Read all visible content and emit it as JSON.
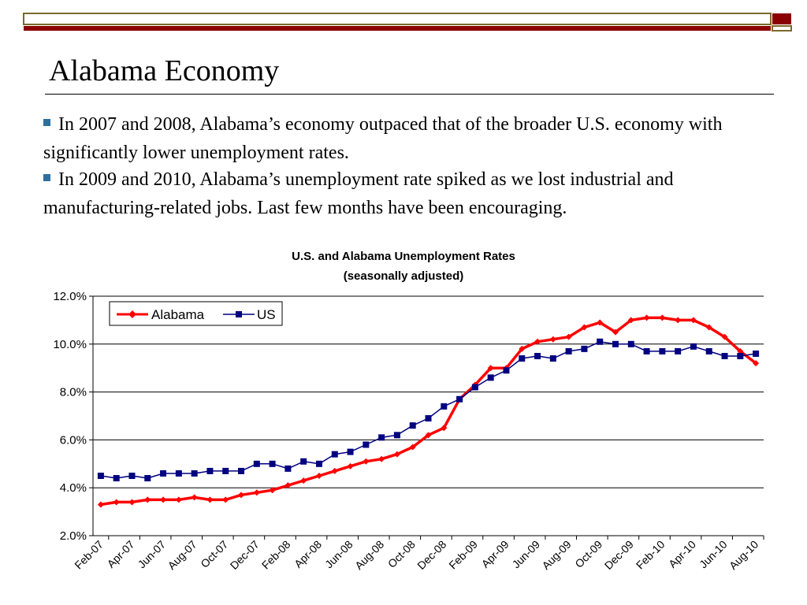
{
  "slide": {
    "title": "Alabama Economy",
    "bullets": [
      "In 2007 and 2008, Alabama’s economy outpaced that of the broader U.S. economy with significantly lower unemployment rates.",
      "In 2009 and 2010, Alabama’s unemployment rate spiked as we lost industrial and manufacturing-related jobs. Last few months have been encouraging."
    ]
  },
  "colors": {
    "header_bar": "#7a6a2a",
    "header_accent": "#8b0000",
    "bullet_mark": "#2e6f9e",
    "alabama": "#ff0000",
    "us": "#000080"
  },
  "chart_data": {
    "type": "line",
    "title": "U.S. and Alabama Unemployment Rates",
    "subtitle": "(seasonally adjusted)",
    "ylim": [
      0.02,
      0.12
    ],
    "yticks": [
      "2.0%",
      "4.0%",
      "6.0%",
      "8.0%",
      "10.0%",
      "12.0%"
    ],
    "grid": true,
    "legend_position": "top-left",
    "x": [
      "Feb-07",
      "Mar-07",
      "Apr-07",
      "May-07",
      "Jun-07",
      "Jul-07",
      "Aug-07",
      "Sep-07",
      "Oct-07",
      "Nov-07",
      "Dec-07",
      "Jan-08",
      "Feb-08",
      "Mar-08",
      "Apr-08",
      "May-08",
      "Jun-08",
      "Jul-08",
      "Aug-08",
      "Sep-08",
      "Oct-08",
      "Nov-08",
      "Dec-08",
      "Jan-09",
      "Feb-09",
      "Mar-09",
      "Apr-09",
      "May-09",
      "Jun-09",
      "Jul-09",
      "Aug-09",
      "Sep-09",
      "Oct-09",
      "Nov-09",
      "Dec-09",
      "Jan-10",
      "Feb-10",
      "Mar-10",
      "Apr-10",
      "May-10",
      "Jun-10",
      "Jul-10",
      "Aug-10"
    ],
    "xtick_labels": [
      "Feb-07",
      "Apr-07",
      "Jun-07",
      "Aug-07",
      "Oct-07",
      "Dec-07",
      "Feb-08",
      "Apr-08",
      "Jun-08",
      "Aug-08",
      "Oct-08",
      "Dec-08",
      "Feb-09",
      "Apr-09",
      "Jun-09",
      "Aug-09",
      "Oct-09",
      "Dec-09",
      "Feb-10",
      "Apr-10",
      "Jun-10",
      "Aug-10"
    ],
    "series": [
      {
        "name": "Alabama",
        "color": "#ff0000",
        "values": [
          3.3,
          3.4,
          3.4,
          3.5,
          3.5,
          3.5,
          3.6,
          3.5,
          3.5,
          3.7,
          3.8,
          3.9,
          4.1,
          4.3,
          4.5,
          4.7,
          4.9,
          5.1,
          5.2,
          5.4,
          5.7,
          6.2,
          6.5,
          7.7,
          8.3,
          9.0,
          9.0,
          9.8,
          10.1,
          10.2,
          10.3,
          10.7,
          10.9,
          10.5,
          11.0,
          11.1,
          11.1,
          11.0,
          11.0,
          10.7,
          10.3,
          9.7,
          9.2
        ]
      },
      {
        "name": "US",
        "color": "#000080",
        "values": [
          4.5,
          4.4,
          4.5,
          4.4,
          4.6,
          4.6,
          4.6,
          4.7,
          4.7,
          4.7,
          5.0,
          5.0,
          4.8,
          5.1,
          5.0,
          5.4,
          5.5,
          5.8,
          6.1,
          6.2,
          6.6,
          6.9,
          7.4,
          7.7,
          8.2,
          8.6,
          8.9,
          9.4,
          9.5,
          9.4,
          9.7,
          9.8,
          10.1,
          10.0,
          10.0,
          9.7,
          9.7,
          9.7,
          9.9,
          9.7,
          9.5,
          9.5,
          9.6
        ]
      }
    ]
  }
}
